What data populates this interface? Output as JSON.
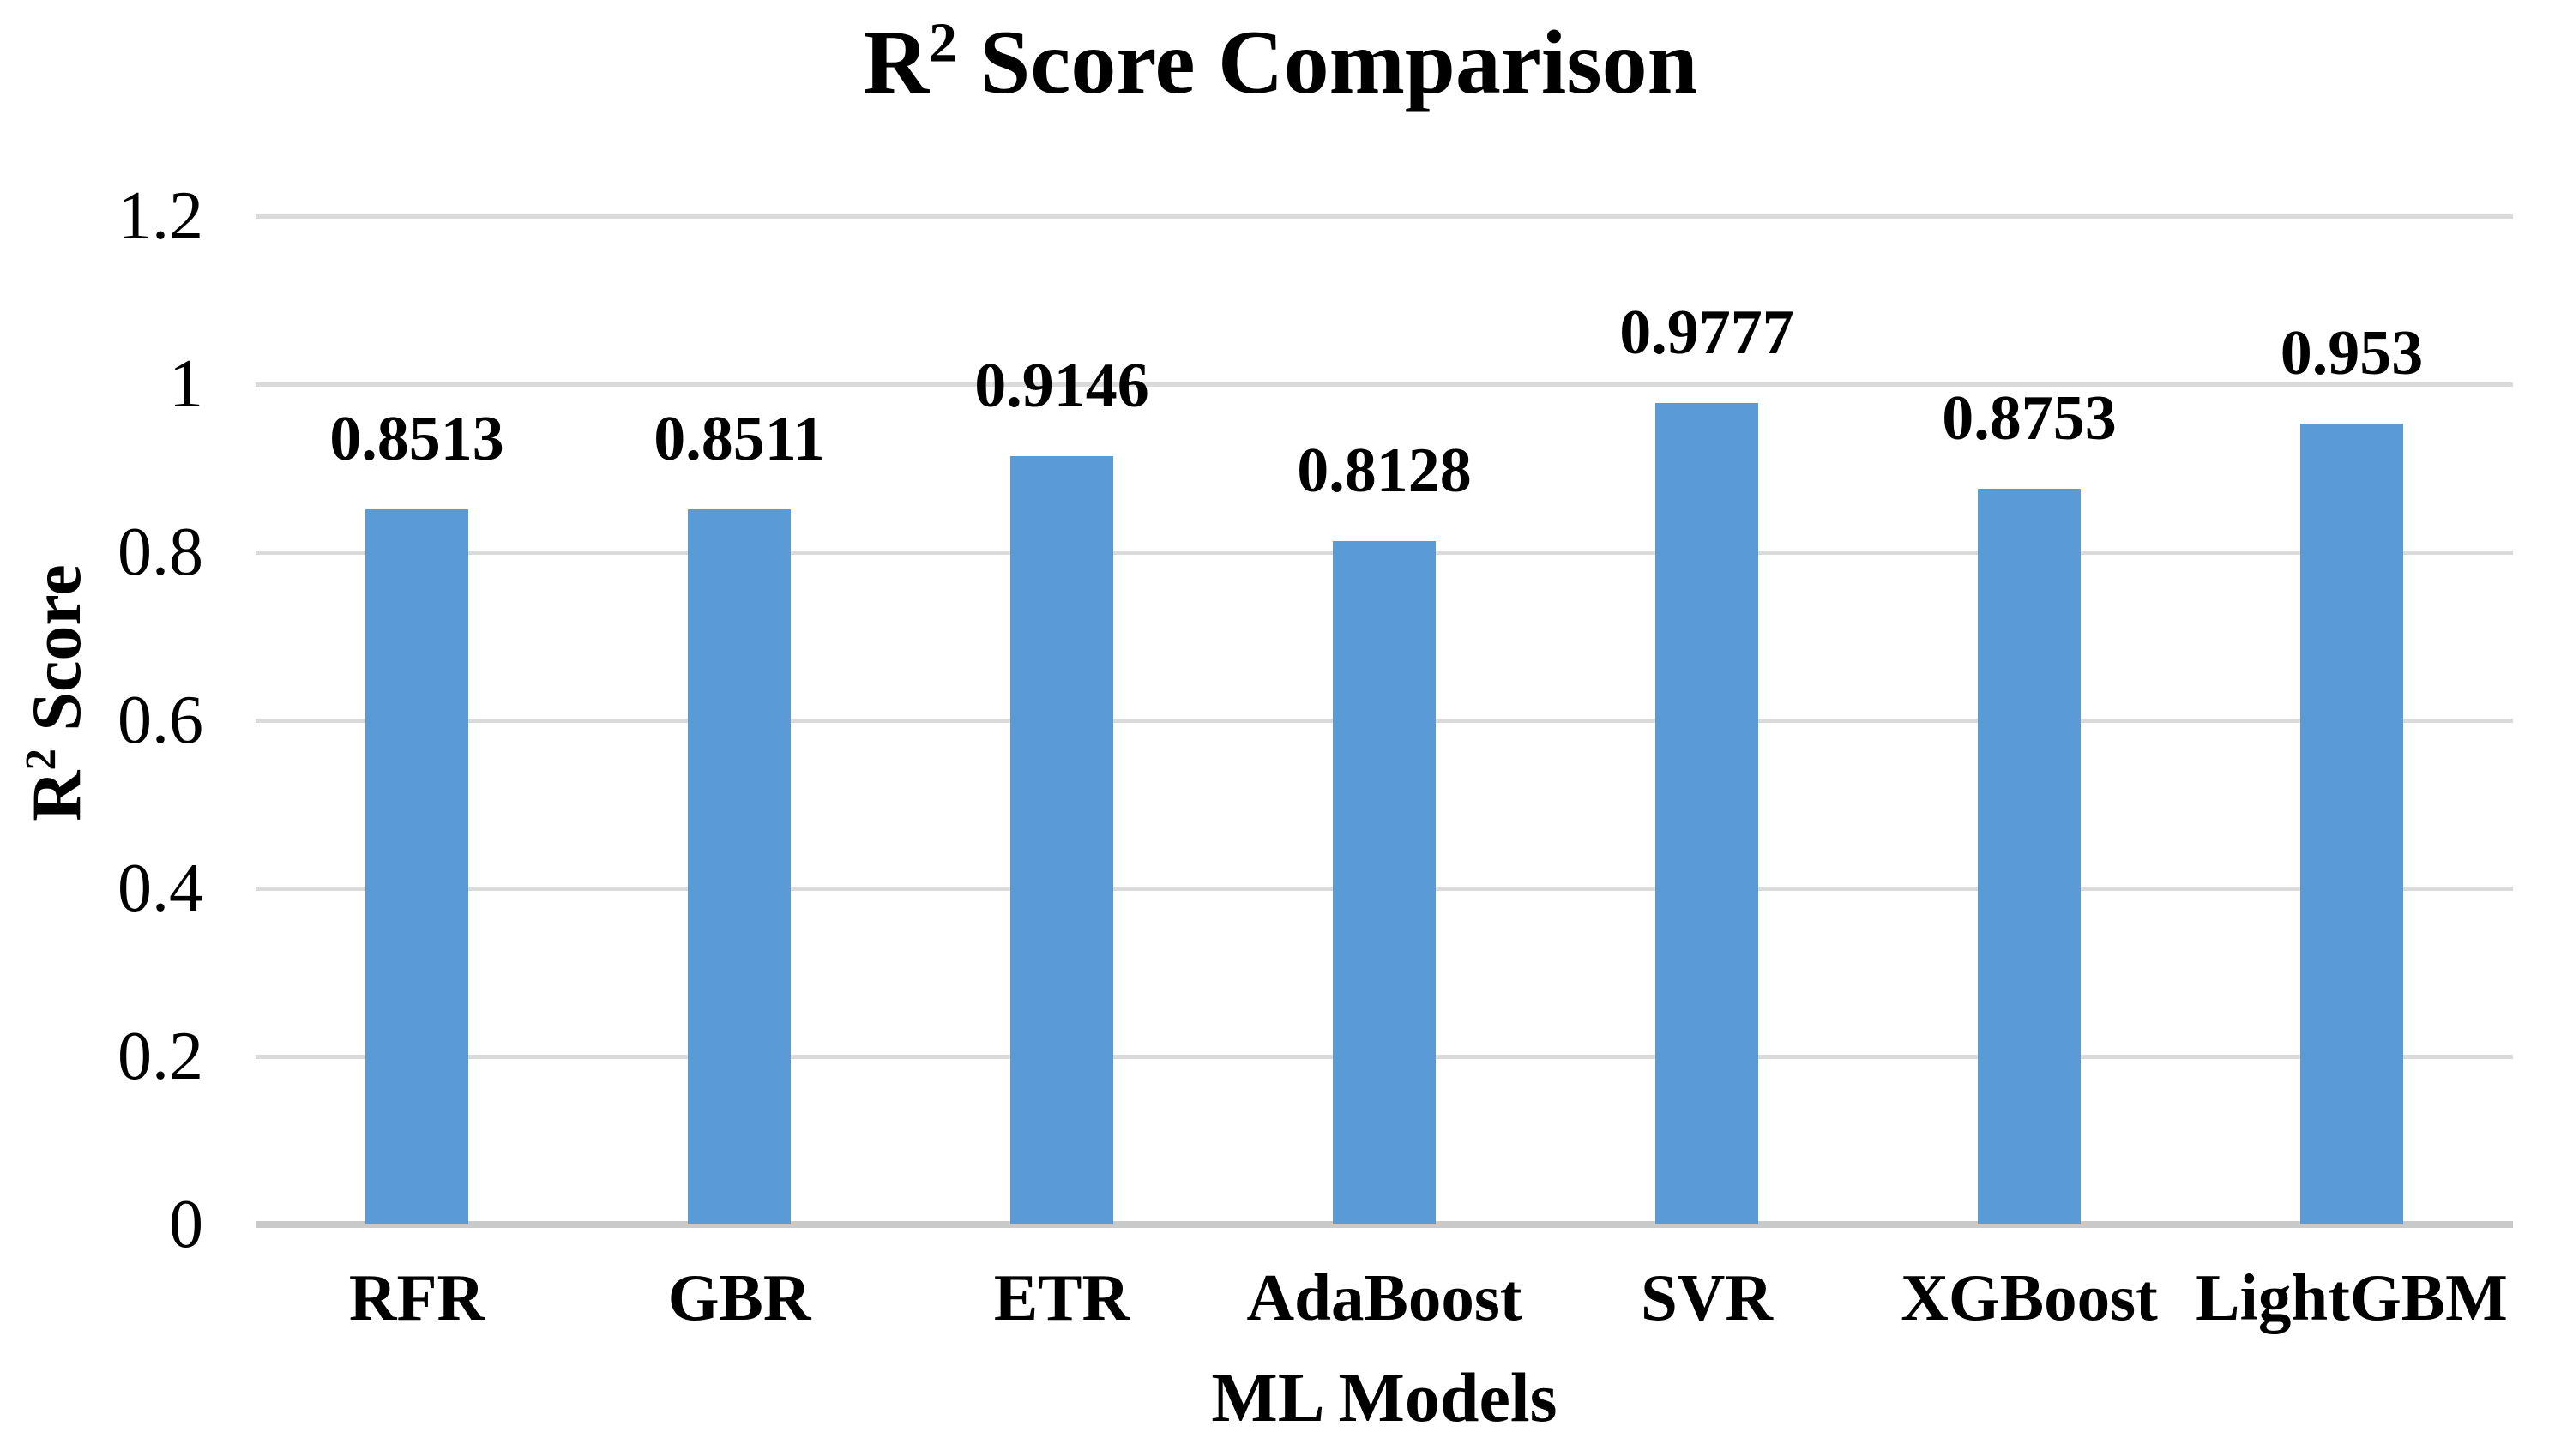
{
  "chart_data": {
    "type": "bar",
    "title": "R² Score Comparison",
    "title_parts": {
      "base": "R",
      "sup": "2",
      "rest": " Score Comparison"
    },
    "xlabel": "ML Models",
    "ylabel": "R² Score",
    "ylabel_parts": {
      "base": "R",
      "sup": "2",
      "rest": " Score"
    },
    "categories": [
      "RFR",
      "GBR",
      "ETR",
      "AdaBoost",
      "SVR",
      "XGBoost",
      "LightGBM"
    ],
    "values": [
      0.8513,
      0.8511,
      0.9146,
      0.8128,
      0.9777,
      0.8753,
      0.953
    ],
    "value_labels": [
      "0.8513",
      "0.8511",
      "0.9146",
      "0.8128",
      "0.9777",
      "0.8753",
      "0.953"
    ],
    "ylim": [
      0,
      1.2
    ],
    "yticks": [
      "0",
      "0.2",
      "0.4",
      "0.6",
      "0.8",
      "1",
      "1.2"
    ],
    "ytick_values": [
      0,
      0.2,
      0.4,
      0.6,
      0.8,
      1,
      1.2
    ],
    "grid": "horizontal",
    "legend": "none",
    "bar_color": "#5B9BD5",
    "gridline_color": "#DADADA",
    "axis_line_color": "#C9C9C9",
    "text_color": "#000000",
    "background_color": "#FFFFFF"
  }
}
